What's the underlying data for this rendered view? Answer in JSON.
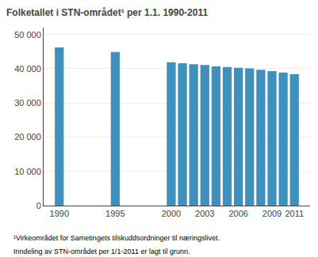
{
  "chart_data": {
    "type": "bar",
    "title": "Folketallet i STN-området¹ per 1.1. 1990-2011",
    "x": [
      1990,
      1995,
      2000,
      2001,
      2002,
      2003,
      2004,
      2005,
      2006,
      2007,
      2008,
      2009,
      2010,
      2011
    ],
    "values": [
      46200,
      44900,
      41900,
      41600,
      41300,
      41100,
      40700,
      40500,
      40300,
      40100,
      39700,
      39300,
      38900,
      38400
    ],
    "color": "#4090be",
    "xlim": [
      1988.6,
      2012.4
    ],
    "xticks": [
      1990,
      1995,
      2000,
      2003,
      2006,
      2009,
      2011
    ],
    "ylim": [
      0,
      52000
    ],
    "yticks": [
      0,
      {
        "value": 10000,
        "label": "10 000"
      },
      {
        "value": 20000,
        "label": "20 000"
      },
      {
        "value": 30000,
        "label": "30 000"
      },
      {
        "value": 40000,
        "label": "40 000"
      },
      {
        "value": 50000,
        "label": "50 000"
      }
    ],
    "grid": "y",
    "annotations": [
      "¹Virkeområdet for Sametingets tilskuddsordninger til næringslivet.",
      "Inndeling av STN-området per 1/1-2011 er lagt til grunn."
    ]
  }
}
